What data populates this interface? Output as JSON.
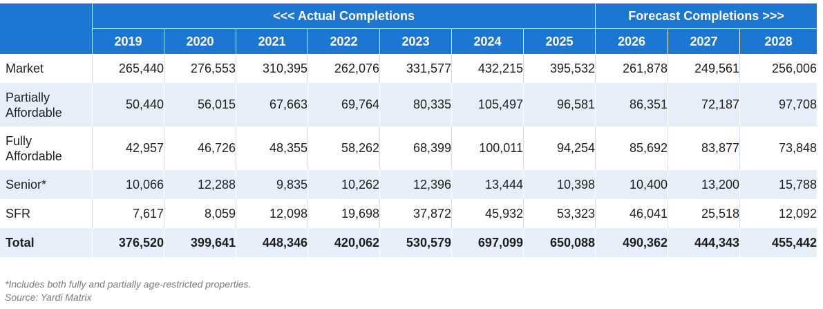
{
  "header": {
    "actual_label": "<<< Actual Completions",
    "forecast_label": "Forecast Completions >>>",
    "years": [
      "2019",
      "2020",
      "2021",
      "2022",
      "2023",
      "2024",
      "2025",
      "2026",
      "2027",
      "2028"
    ]
  },
  "rows": [
    {
      "label": "Market",
      "values": [
        "265,440",
        "276,553",
        "310,395",
        "262,076",
        "331,577",
        "432,215",
        "395,532",
        "261,878",
        "249,561",
        "256,006"
      ]
    },
    {
      "label": "Partially Affordable",
      "values": [
        "50,440",
        "56,015",
        "67,663",
        "69,764",
        "80,335",
        "105,497",
        "96,581",
        "86,351",
        "72,187",
        "97,708"
      ]
    },
    {
      "label": "Fully Affordable",
      "values": [
        "42,957",
        "46,726",
        "48,355",
        "58,262",
        "68,399",
        "100,011",
        "94,254",
        "85,692",
        "83,877",
        "73,848"
      ]
    },
    {
      "label": "Senior*",
      "values": [
        "10,066",
        "12,288",
        "9,835",
        "10,262",
        "12,396",
        "13,444",
        "10,398",
        "10,400",
        "13,200",
        "15,788"
      ]
    },
    {
      "label": "SFR",
      "values": [
        "7,617",
        "8,059",
        "12,098",
        "19,698",
        "37,872",
        "45,932",
        "53,323",
        "46,041",
        "25,518",
        "12,092"
      ]
    },
    {
      "label": "Total",
      "values": [
        "376,520",
        "399,641",
        "448,346",
        "420,062",
        "530,579",
        "697,099",
        "650,088",
        "490,362",
        "444,343",
        "455,442"
      ]
    }
  ],
  "notes": {
    "footnote": "*Includes both fully and partially age-restricted properties.",
    "source": "Source: Yardi Matrix"
  },
  "colors": {
    "header_bg": "#1c77d2",
    "band_bg": "#e6eff9"
  }
}
